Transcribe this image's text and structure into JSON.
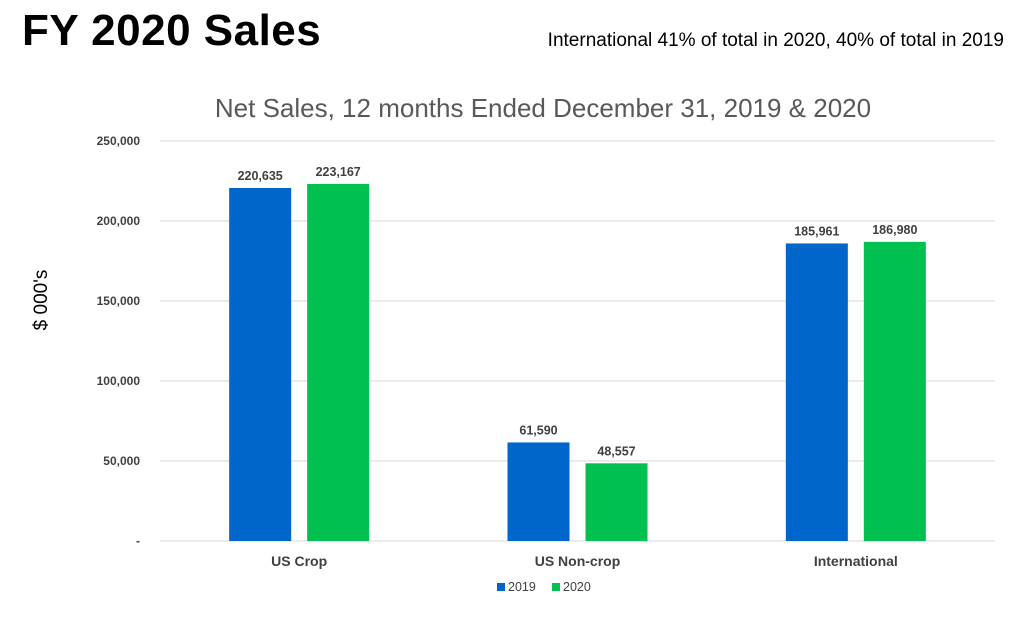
{
  "slide": {
    "title": "FY 2020 Sales",
    "subtitle": "International 41% of total in 2020, 40% of total in 2019"
  },
  "chart_data": {
    "type": "bar",
    "title": "Net Sales, 12 months Ended December 31, 2019 & 2020",
    "xlabel": "",
    "ylabel": "$ 000's",
    "categories": [
      "US Crop",
      "US Non-crop",
      "International"
    ],
    "series": [
      {
        "name": "2019",
        "values": [
          220635,
          61590,
          185961
        ],
        "labels": [
          "220,635",
          "61,590",
          "185,961"
        ],
        "color": "#0066CC"
      },
      {
        "name": "2020",
        "values": [
          223167,
          48557,
          186980
        ],
        "labels": [
          "223,167",
          "48,557",
          "186,980"
        ],
        "color": "#00C050"
      }
    ],
    "ylim": [
      0,
      250000
    ],
    "yticks": [
      0,
      50000,
      100000,
      150000,
      200000,
      250000
    ],
    "ytick_labels": [
      "-",
      "50,000",
      "100,000",
      "150,000",
      "200,000",
      "250,000"
    ],
    "grid": true,
    "legend": "bottom-center",
    "gridline_color": "#D9D9D9"
  }
}
